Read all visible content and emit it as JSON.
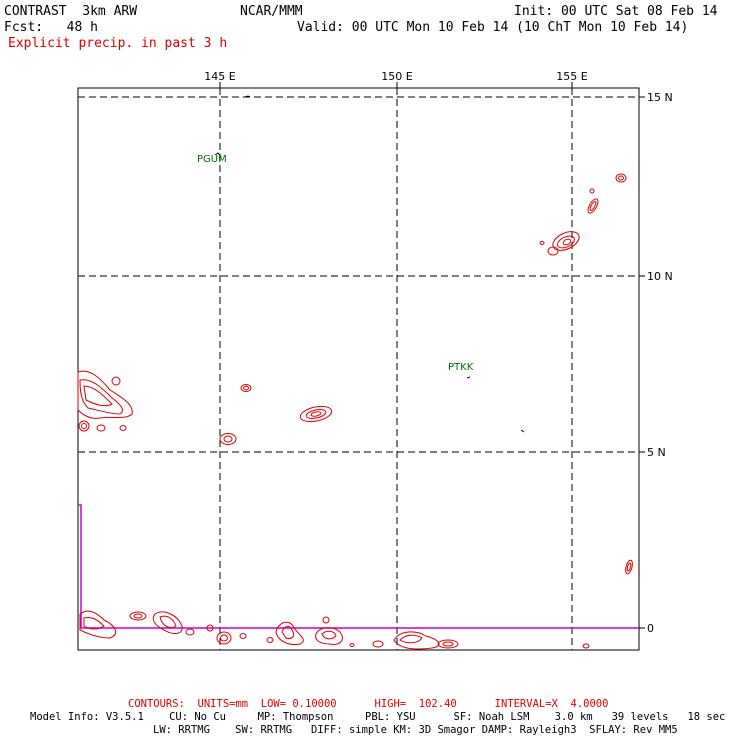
{
  "header": {
    "model": "CONTRAST  3km ARW",
    "org": "NCAR/MMM",
    "init": "Init: 00 UTC Sat 08 Feb 14",
    "fcst": "Fcst:   48 h",
    "valid": "Valid: 00 UTC Mon 10 Feb 14 (10 ChT Mon 10 Feb 14)",
    "field": "Explicit precip. in past 3 h"
  },
  "map": {
    "lon_labels": [
      "145 E",
      "150 E",
      "155 E"
    ],
    "lat_labels": [
      "15 N",
      "10 N",
      "5 N",
      "0"
    ],
    "stations": [
      {
        "id": "PGUM",
        "lon": 144.8,
        "lat": 13.5
      },
      {
        "id": "PTKK",
        "lon": 151.9,
        "lat": 7.4
      }
    ],
    "colors": {
      "precip_contour": "#e00000",
      "equator_line": "#cc00cc",
      "station": "#007000",
      "grid": "#000000"
    }
  },
  "footer": {
    "contours": "CONTOURS:  UNITS=mm  LOW= 0.10000      HIGH=  102.40      INTERVAL=X  4.0000",
    "model_info": "Model Info: V3.5.1    CU: No Cu     MP: Thompson     PBL: YSU      SF: Noah LSM    3.0 km   39 levels   18 sec",
    "physics": "LW: RRTMG    SW: RRTMG   DIFF: simple KM: 3D Smagor DAMP: Rayleigh3  SFLAY: Rev MM5"
  }
}
